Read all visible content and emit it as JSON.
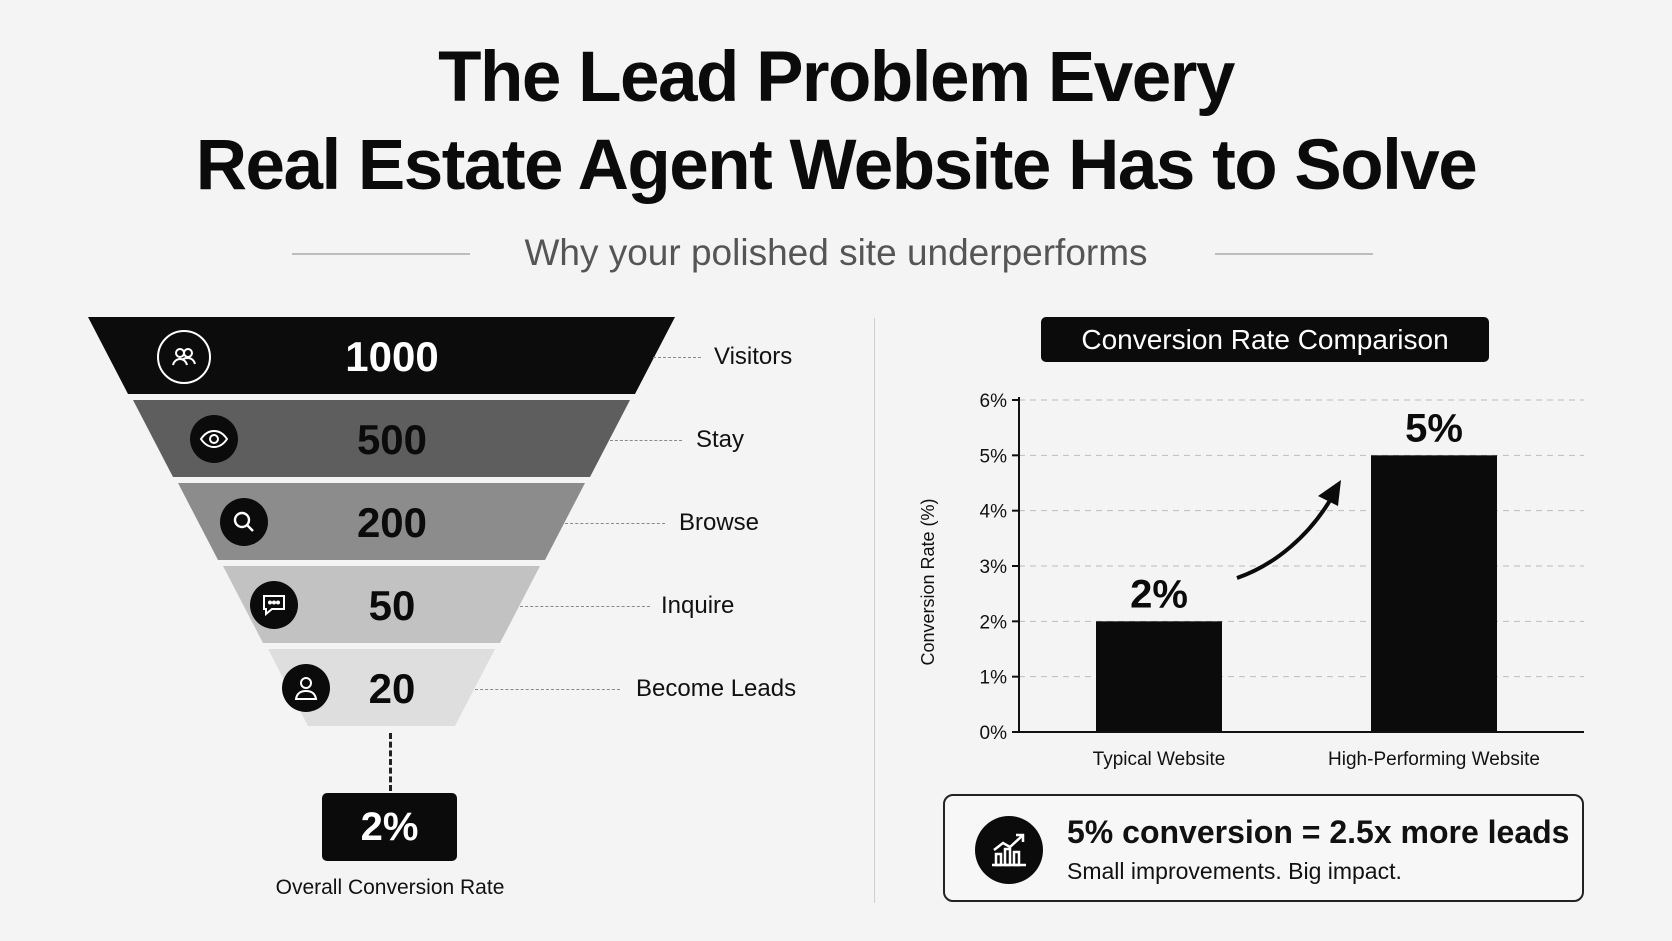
{
  "header": {
    "title_line1": "The Lead Problem Every",
    "title_line2": "Real Estate Agent Website Has to Solve",
    "subtitle": "Why your polished site underperforms"
  },
  "funnel": {
    "stages": [
      {
        "value": "1000",
        "label": "Visitors",
        "icon": "users-icon",
        "fill": "#0c0c0c",
        "text_color": "#ffffff"
      },
      {
        "value": "500",
        "label": "Stay",
        "icon": "eye-icon",
        "fill": "#5e5e5e",
        "text_color": "#0b0b0b"
      },
      {
        "value": "200",
        "label": "Browse",
        "icon": "search-icon",
        "fill": "#8c8c8c",
        "text_color": "#0b0b0b"
      },
      {
        "value": "50",
        "label": "Inquire",
        "icon": "chat-icon",
        "fill": "#c2c2c2",
        "text_color": "#0b0b0b"
      },
      {
        "value": "20",
        "label": "Become Leads",
        "icon": "person-icon",
        "fill": "#dedede",
        "text_color": "#0b0b0b"
      }
    ],
    "overall_value": "2%",
    "overall_label": "Overall Conversion Rate"
  },
  "chart_data": {
    "type": "bar",
    "title": "Conversion Rate Comparison",
    "ylabel": "Conversion Rate (%)",
    "xlabel": "",
    "categories": [
      "Typical Website",
      "High-Performing Website"
    ],
    "values": [
      2,
      5
    ],
    "value_labels": [
      "2%",
      "5%"
    ],
    "ylim": [
      0,
      6
    ],
    "yticks": [
      "0%",
      "1%",
      "2%",
      "3%",
      "4%",
      "5%",
      "6%"
    ],
    "grid": true,
    "bar_color": "#0b0b0b"
  },
  "callout": {
    "headline": "5% conversion = 2.5x more leads",
    "subtext": "Small improvements. Big impact.",
    "icon": "growth-chart-icon"
  }
}
